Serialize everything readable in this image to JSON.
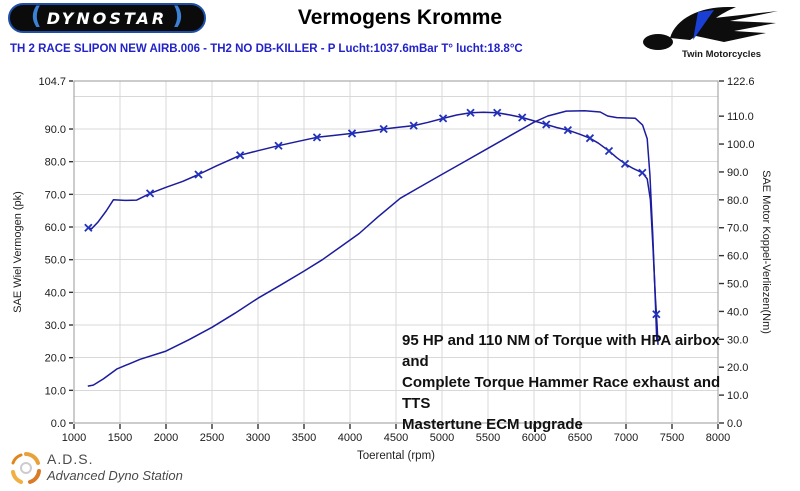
{
  "header": {
    "dynostar_logo_text": "DYNOSTAR",
    "title": "Vermogens Kromme",
    "subtitle": "TH 2 RACE SLIPON NEW AIRB.006 - TH2 NO DB-KILLER  - P Lucht:1037.6mBar T° lucht:18.8°C",
    "twin_logo_text": "Twin Motorcycles"
  },
  "annotation": {
    "lines": [
      "95 HP and 110 NM of Torque with HPA airbox and",
      "Complete Torque Hammer Race exhaust and TTS",
      "Mastertune ECM upgrade"
    ]
  },
  "footer": {
    "ads_abbr": "A.D.S.",
    "ads_name": "Advanced Dyno Station"
  },
  "colors": {
    "subtitle_blue": "#2323c8",
    "curve_blue": "#1c1c9e",
    "marker_blue": "#2233bb",
    "grid_gray": "#d8d8d8",
    "border_gray": "#9a9a9a",
    "logo_blue": "#1a3fd4",
    "ads_orange": "#e0861f"
  },
  "chart_data": {
    "type": "line",
    "title": "Vermogens Kromme",
    "xlabel": "Toerental (rpm)",
    "ylabel_left": "SAE Wiel Vermogen (pk)",
    "ylabel_right": "SAE Motor Koppel-Verliezen(Nm)",
    "xlim": [
      1000,
      8000
    ],
    "ylim_left": [
      0,
      104.7
    ],
    "ylim_right": [
      0,
      122.6
    ],
    "grid": true,
    "x_ticks": [
      1000,
      1500,
      2000,
      2500,
      3000,
      3500,
      4000,
      4500,
      5000,
      5500,
      6000,
      6500,
      7000,
      7500,
      8000
    ],
    "left_ticks": {
      "values": [
        104.7,
        90,
        80,
        70,
        60,
        50,
        40,
        30,
        20,
        10,
        0
      ],
      "labels": [
        "104.7",
        "90.0",
        "80.0",
        "70.0",
        "60.0",
        "50.0",
        "40.0",
        "30.0",
        "20.0",
        "10.0",
        "0.0"
      ]
    },
    "right_ticks": {
      "values": [
        122.6,
        110,
        100,
        90,
        80,
        70,
        60,
        50,
        40,
        30,
        20,
        10,
        0
      ],
      "labels": [
        "122.6",
        "110.0",
        "100.0",
        "90.0",
        "80.0",
        "70.0",
        "60.0",
        "50.0",
        "40.0",
        "30.0",
        "20.0",
        "10.0",
        "0.0"
      ]
    },
    "grid_x": [
      1500,
      2000,
      2500,
      3000,
      3500,
      4000,
      4500,
      5000,
      5500,
      6000,
      6500,
      7000,
      7500
    ],
    "grid_y_left": [
      10,
      20,
      30,
      40,
      50,
      60,
      70,
      80,
      90,
      100
    ],
    "series": [
      {
        "name": "wheel-power-pk",
        "axis": "left",
        "marker": "none",
        "peak_label": "95 HP",
        "values": [
          [
            1150,
            11.3
          ],
          [
            1210,
            11.6
          ],
          [
            1320,
            13.5
          ],
          [
            1464,
            16.5
          ],
          [
            1718,
            19.5
          ],
          [
            2000,
            22.0
          ],
          [
            2250,
            25.5
          ],
          [
            2500,
            29.3
          ],
          [
            2750,
            33.6
          ],
          [
            3000,
            38.2
          ],
          [
            3250,
            42.3
          ],
          [
            3500,
            46.5
          ],
          [
            3700,
            50.0
          ],
          [
            3900,
            54.0
          ],
          [
            4100,
            58.0
          ],
          [
            4300,
            63.0
          ],
          [
            4546,
            68.8
          ],
          [
            4750,
            72.1
          ],
          [
            5000,
            76.1
          ],
          [
            5250,
            80.1
          ],
          [
            5500,
            84.1
          ],
          [
            5750,
            88.1
          ],
          [
            6000,
            92.1
          ],
          [
            6150,
            94.0
          ],
          [
            6350,
            95.5
          ],
          [
            6550,
            95.6
          ],
          [
            6720,
            95.2
          ],
          [
            6800,
            94.0
          ],
          [
            6900,
            93.5
          ],
          [
            7100,
            93.3
          ],
          [
            7180,
            91.2
          ],
          [
            7230,
            87.0
          ],
          [
            7260,
            76.0
          ],
          [
            7290,
            58.0
          ],
          [
            7315,
            40.0
          ],
          [
            7335,
            25.0
          ]
        ]
      },
      {
        "name": "engine-torque-nm",
        "axis": "right",
        "marker": "x",
        "peak_label": "110 NM",
        "values": [
          [
            1156,
            70.0
          ],
          [
            1190,
            69.6
          ],
          [
            1260,
            72.0
          ],
          [
            1350,
            76.0
          ],
          [
            1428,
            80.0
          ],
          [
            1550,
            79.8
          ],
          [
            1682,
            79.9
          ],
          [
            1827,
            82.3
          ],
          [
            2000,
            84.5
          ],
          [
            2180,
            86.6
          ],
          [
            2353,
            89.1
          ],
          [
            2550,
            92.2
          ],
          [
            2700,
            94.4
          ],
          [
            2806,
            96.0
          ],
          [
            3000,
            97.6
          ],
          [
            3223,
            99.4
          ],
          [
            3440,
            101.0
          ],
          [
            3641,
            102.4
          ],
          [
            3830,
            103.1
          ],
          [
            4022,
            103.8
          ],
          [
            4200,
            104.6
          ],
          [
            4366,
            105.4
          ],
          [
            4530,
            106.0
          ],
          [
            4692,
            106.6
          ],
          [
            4850,
            107.8
          ],
          [
            5012,
            109.2
          ],
          [
            5160,
            110.4
          ],
          [
            5310,
            111.2
          ],
          [
            5450,
            111.4
          ],
          [
            5600,
            111.2
          ],
          [
            5740,
            110.4
          ],
          [
            5872,
            109.5
          ],
          [
            6000,
            108.3
          ],
          [
            6133,
            107.0
          ],
          [
            6250,
            105.9
          ],
          [
            6368,
            105.0
          ],
          [
            6500,
            103.5
          ],
          [
            6608,
            102.1
          ],
          [
            6700,
            100.3
          ],
          [
            6815,
            97.5
          ],
          [
            6900,
            95.1
          ],
          [
            6989,
            92.9
          ],
          [
            7080,
            91.2
          ],
          [
            7178,
            89.7
          ],
          [
            7230,
            87.5
          ],
          [
            7265,
            80.0
          ],
          [
            7295,
            62.0
          ],
          [
            7320,
            45.0
          ],
          [
            7338,
            35.0
          ],
          [
            7348,
            28.0
          ]
        ],
        "marker_points": [
          [
            1156,
            70.0
          ],
          [
            1827,
            82.3
          ],
          [
            2353,
            89.1
          ],
          [
            2806,
            96.0
          ],
          [
            3223,
            99.4
          ],
          [
            3641,
            102.4
          ],
          [
            4022,
            103.8
          ],
          [
            4366,
            105.4
          ],
          [
            4692,
            106.6
          ],
          [
            5012,
            109.2
          ],
          [
            5310,
            111.2
          ],
          [
            5600,
            111.2
          ],
          [
            5872,
            109.5
          ],
          [
            6133,
            107.0
          ],
          [
            6368,
            105.0
          ],
          [
            6608,
            102.1
          ],
          [
            6815,
            97.5
          ],
          [
            6989,
            92.9
          ],
          [
            7178,
            89.7
          ],
          [
            7330,
            39.0
          ]
        ]
      }
    ]
  }
}
